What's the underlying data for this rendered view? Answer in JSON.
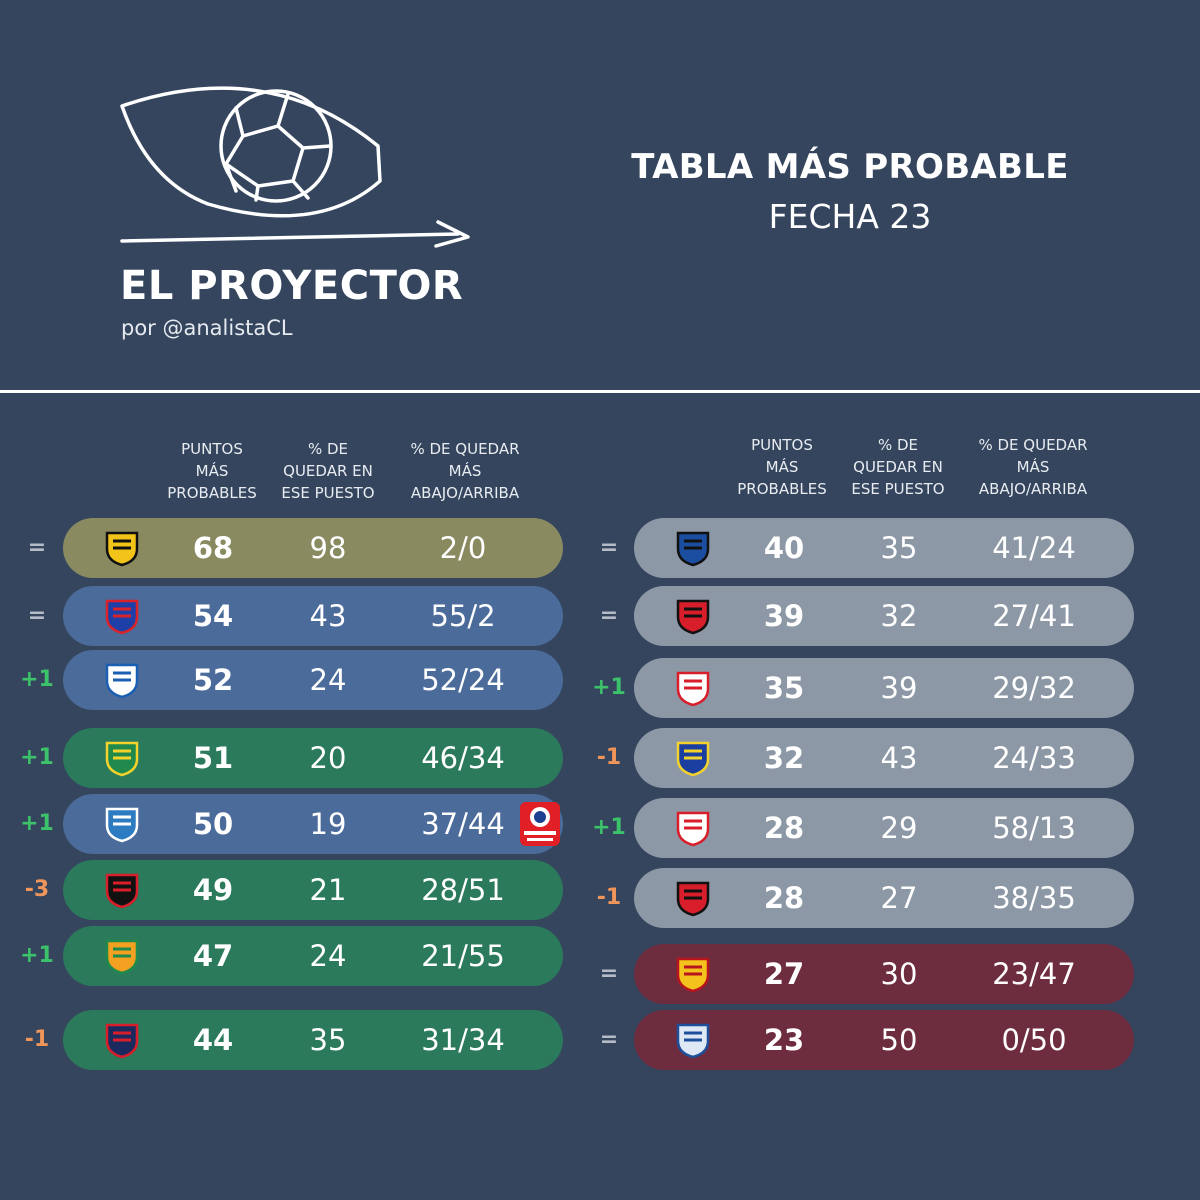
{
  "header": {
    "brand": "EL PROYECTOR",
    "brand_sub": "por @analistaCL",
    "title": "TABLA MÁS PROBABLE",
    "subtitle": "FECHA 23"
  },
  "columns": {
    "points": [
      "PUNTOS",
      "MÁS",
      "PROBABLES"
    ],
    "position_pct": [
      "% DE",
      "QUEDAR EN",
      "ESE PUESTO"
    ],
    "below_above_pct": [
      "% DE QUEDAR",
      "MÁS",
      "ABAJO/ARRIBA"
    ]
  },
  "colors": {
    "background": "#34455d",
    "leader": "#8a8a61",
    "blue_zone": "#4b6b9b",
    "green_zone": "#2b7a5b",
    "gray_zone": "#8d98a6",
    "red_zone": "#6e2d3e",
    "change_up": "#3cc26a",
    "change_down": "#f0955a",
    "change_same": "#b5bcc7"
  },
  "left_table": [
    {
      "change": "=",
      "team_icon": "coquimbo-unido-crest",
      "points": "68",
      "position_pct": "98",
      "below_above": "2/0"
    },
    {
      "change": "=",
      "team_icon": "universidad-de-chile-crest",
      "points": "54",
      "position_pct": "43",
      "below_above": "55/2"
    },
    {
      "change": "+1",
      "team_icon": "universidad-catolica-crest",
      "points": "52",
      "position_pct": "24",
      "below_above": "52/24"
    },
    {
      "change": "+1",
      "team_icon": "ohiggins-crest",
      "points": "51",
      "position_pct": "20",
      "below_above": "46/34"
    },
    {
      "change": "+1",
      "team_icon": "audax-italiano-crest",
      "points": "50",
      "position_pct": "19",
      "below_above": "37/44",
      "badge_icon": "copa-chile-badge"
    },
    {
      "change": "-3",
      "team_icon": "palestino-crest",
      "points": "49",
      "position_pct": "21",
      "below_above": "28/51"
    },
    {
      "change": "+1",
      "team_icon": "cobresal-crest",
      "points": "47",
      "position_pct": "24",
      "below_above": "21/55"
    },
    {
      "change": "-1",
      "team_icon": "colo-colo-crest",
      "points": "44",
      "position_pct": "35",
      "below_above": "31/34"
    }
  ],
  "right_table": [
    {
      "change": "=",
      "team_icon": "huachipato-crest",
      "points": "40",
      "position_pct": "35",
      "below_above": "41/24"
    },
    {
      "change": "=",
      "team_icon": "nublense-crest",
      "points": "39",
      "position_pct": "32",
      "below_above": "27/41"
    },
    {
      "change": "+1",
      "team_icon": "union-la-calera-crest",
      "points": "35",
      "position_pct": "39",
      "below_above": "29/32"
    },
    {
      "change": "-1",
      "team_icon": "everton-crest",
      "points": "32",
      "position_pct": "43",
      "below_above": "24/33"
    },
    {
      "change": "+1",
      "team_icon": "la-serena-crest",
      "points": "28",
      "position_pct": "29",
      "below_above": "58/13"
    },
    {
      "change": "-1",
      "team_icon": "deportes-limache-crest",
      "points": "28",
      "position_pct": "27",
      "below_above": "38/35"
    },
    {
      "change": "=",
      "team_icon": "union-espanola-crest",
      "points": "27",
      "position_pct": "30",
      "below_above": "23/47"
    },
    {
      "change": "=",
      "team_icon": "deportes-iquique-crest",
      "points": "23",
      "position_pct": "50",
      "below_above": "0/50"
    }
  ]
}
